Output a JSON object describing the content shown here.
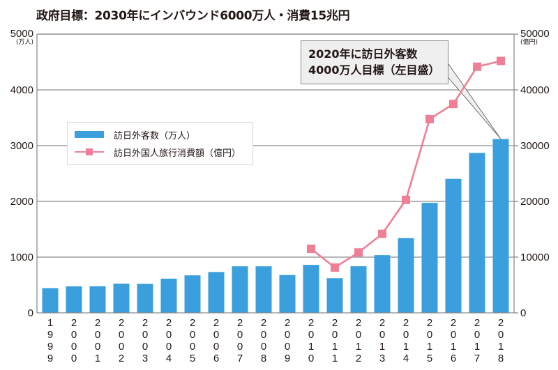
{
  "title": "政府目標：2030年にインバウンド6000万人・消費15兆円",
  "callout": {
    "line1": "2020年に訪日外客数",
    "line2": "4000万人目標（左目盛）"
  },
  "chart_data": {
    "type": "bar+line",
    "title": "政府目標：2030年にインバウンド6000万人・消費15兆円",
    "categories": [
      "1999",
      "2000",
      "2001",
      "2002",
      "2003",
      "2004",
      "2005",
      "2006",
      "2007",
      "2008",
      "2009",
      "2010",
      "2011",
      "2012",
      "2013",
      "2014",
      "2015",
      "2016",
      "2017",
      "2018"
    ],
    "y_left": {
      "label": "(万人)",
      "ylim": [
        0,
        5000
      ],
      "ticks": [
        "0",
        "1000",
        "2000",
        "3000",
        "4000",
        "5000"
      ]
    },
    "y_right": {
      "label": "(億円)",
      "ylim": [
        0,
        50000
      ],
      "ticks": [
        "0",
        "10000",
        "20000",
        "30000",
        "40000",
        "50000"
      ]
    },
    "grid": true,
    "legend_position": "left-middle",
    "series": [
      {
        "name": "訪日外客数（万人）",
        "type": "bar",
        "axis": "left",
        "color": "#3a9fdc",
        "values": [
          444,
          476,
          477,
          524,
          521,
          614,
          673,
          733,
          835,
          835,
          679,
          861,
          622,
          836,
          1036,
          1341,
          1974,
          2404,
          2869,
          3119
        ]
      },
      {
        "name": "訪日外国人旅行消費額（億円）",
        "type": "line",
        "axis": "right",
        "color": "#ee7f96",
        "values": [
          null,
          null,
          null,
          null,
          null,
          null,
          null,
          null,
          null,
          null,
          null,
          11490,
          8135,
          10846,
          14167,
          20278,
          34771,
          37476,
          44162,
          45189
        ]
      }
    ],
    "annotations": [
      "2020年に訪日外客数 4000万人目標（左目盛）"
    ]
  }
}
